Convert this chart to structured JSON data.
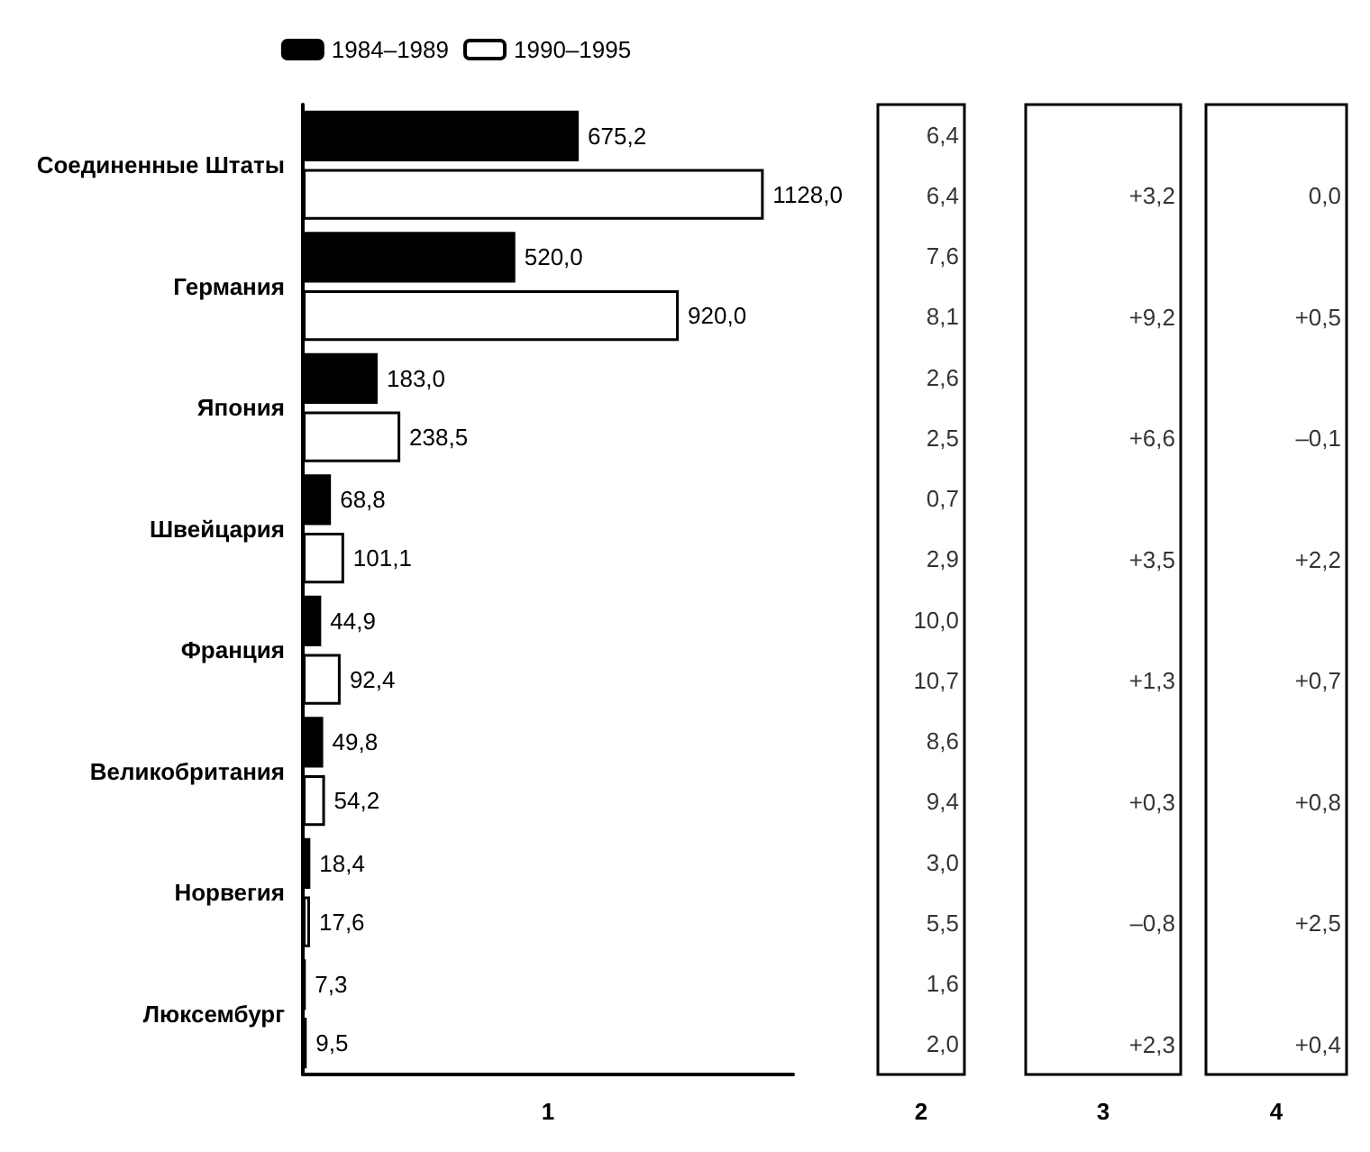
{
  "chart_data": [
    {
      "type": "bar",
      "orientation": "horizontal",
      "categories": [
        "Соединенные Штаты",
        "Германия",
        "Япония",
        "Швейцария",
        "Франция",
        "Великобритания",
        "Норвегия",
        "Люксембург"
      ],
      "series": [
        {
          "name": "1984–1989",
          "color": "#000000",
          "values": [
            675.2,
            520.0,
            183.0,
            68.8,
            44.9,
            49.8,
            18.4,
            7.3
          ],
          "value_labels": [
            "675,2",
            "520,0",
            "183,0",
            "68,8",
            "44,9",
            "49,8",
            "18,4",
            "7,3"
          ]
        },
        {
          "name": "1990–1995",
          "color": "#ffffff",
          "values": [
            1128.0,
            920.0,
            238.5,
            101.1,
            92.4,
            54.2,
            17.6,
            9.5
          ],
          "value_labels": [
            "1128,0",
            "920,0",
            "238,5",
            "101,1",
            "92,4",
            "54,2",
            "17,6",
            "9,5"
          ]
        }
      ],
      "legend": "top",
      "xlabel": "1",
      "tick_labels": "y"
    },
    {
      "type": "other",
      "categories": [
        null,
        null,
        null,
        null,
        null,
        null,
        null,
        null,
        null,
        null,
        null,
        null,
        null,
        null,
        null,
        null
      ],
      "value_labels": [
        "6,4",
        "6,4",
        "7,6",
        "8,1",
        "2,6",
        "2,5",
        "0,7",
        "2,9",
        "10,0",
        "10,7",
        "8,6",
        "9,4",
        "3,0",
        "5,5",
        "1,6",
        "2,0"
      ],
      "xlabel": "2"
    },
    {
      "type": "other",
      "categories": [
        null,
        null,
        null,
        null,
        null,
        null,
        null,
        null
      ],
      "value_labels": [
        "+3,2",
        "+9,2",
        "+6,6",
        "+3,5",
        "+1,3",
        "+0,3",
        "–0,8",
        "+2,3"
      ],
      "xlabel": "3"
    },
    {
      "type": "other",
      "categories": [
        null,
        null,
        null,
        null,
        null,
        null,
        null,
        null
      ],
      "value_labels": [
        "0,0",
        "+0,5",
        "–0,1",
        "+2,2",
        "+0,7",
        "+0,8",
        "+2,5",
        "+0,4"
      ],
      "xlabel": "4"
    }
  ]
}
